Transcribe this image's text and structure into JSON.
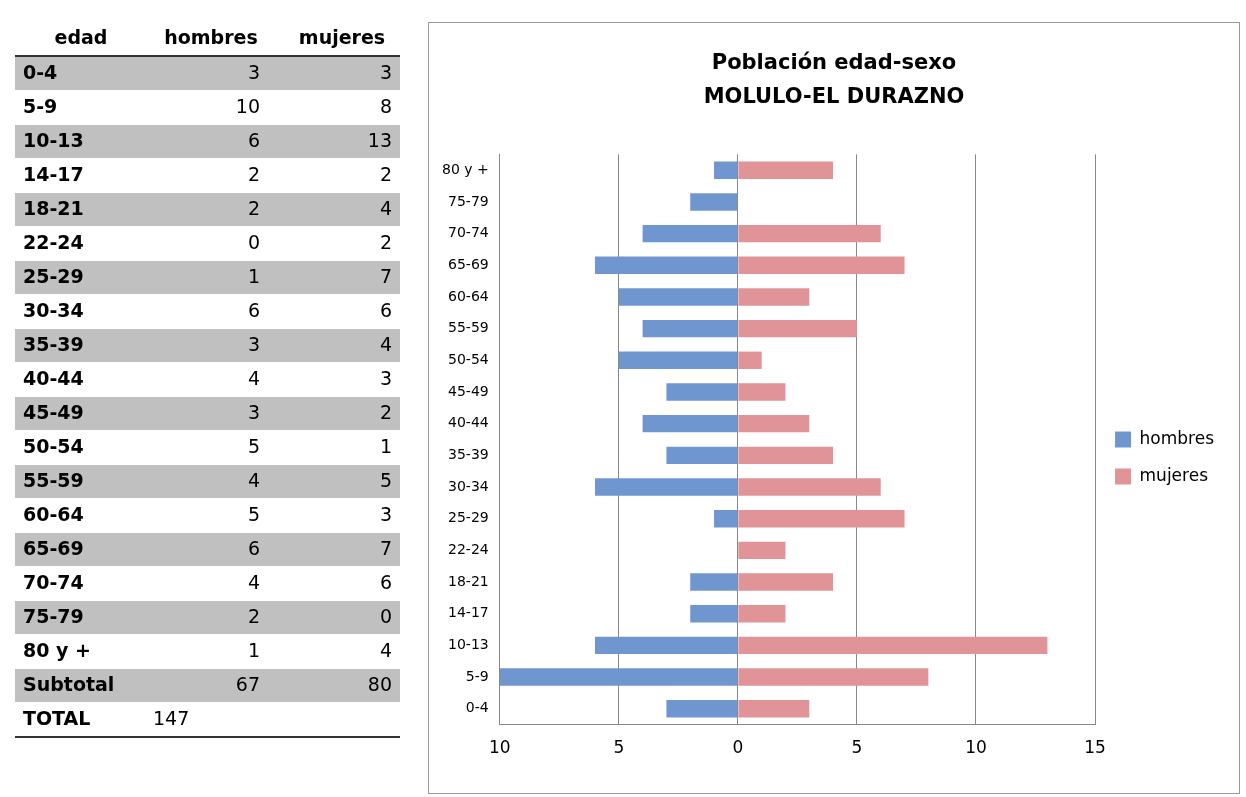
{
  "chart_data": [
    {
      "type": "heatmap",
      "ylabel": "edad",
      "categories": [
        "hombres",
        "mujeres"
      ],
      "y_categories": [
        "0-4",
        "5-9",
        "10-13",
        "14-17",
        "18-21",
        "22-24",
        "25-29",
        "30-34",
        "35-39",
        "40-44",
        "45-49",
        "50-54",
        "55-59",
        "60-64",
        "65-69",
        "70-74",
        "75-79",
        "80 y +",
        "Subtotal",
        "TOTAL"
      ],
      "cells": [
        [
          3,
          3
        ],
        [
          10,
          8
        ],
        [
          6,
          13
        ],
        [
          2,
          2
        ],
        [
          2,
          4
        ],
        [
          0,
          2
        ],
        [
          1,
          7
        ],
        [
          6,
          6
        ],
        [
          3,
          4
        ],
        [
          4,
          3
        ],
        [
          3,
          2
        ],
        [
          5,
          1
        ],
        [
          4,
          5
        ],
        [
          5,
          3
        ],
        [
          6,
          7
        ],
        [
          4,
          6
        ],
        [
          2,
          0
        ],
        [
          1,
          4
        ],
        [
          67,
          80
        ],
        [
          147,
          null
        ]
      ],
      "cell_labels": [
        [
          "3",
          "3"
        ],
        [
          "10",
          "8"
        ],
        [
          "6",
          "13"
        ],
        [
          "2",
          "2"
        ],
        [
          "2",
          "4"
        ],
        [
          "0",
          "2"
        ],
        [
          "1",
          "7"
        ],
        [
          "6",
          "6"
        ],
        [
          "3",
          "4"
        ],
        [
          "4",
          "3"
        ],
        [
          "3",
          "2"
        ],
        [
          "5",
          "1"
        ],
        [
          "4",
          "5"
        ],
        [
          "5",
          "3"
        ],
        [
          "6",
          "7"
        ],
        [
          "4",
          "6"
        ],
        [
          "2",
          "0"
        ],
        [
          "1",
          "4"
        ],
        [
          "67",
          "80"
        ],
        [
          "147",
          null
        ]
      ]
    },
    {
      "type": "bar",
      "orientation": "horizontal",
      "stacked": true,
      "title": "Población edad-sexo\nMOLULO-EL DURAZNO",
      "categories": [
        "80 y +",
        "75-79",
        "70-74",
        "65-69",
        "60-64",
        "55-59",
        "50-54",
        "45-49",
        "40-44",
        "35-39",
        "30-34",
        "25-29",
        "22-24",
        "18-21",
        "14-17",
        "10-13",
        "5-9",
        "0-4"
      ],
      "series": [
        {
          "name": "hombres",
          "color": "#7096d0",
          "values": [
            -1,
            -2,
            -4,
            -6,
            -5,
            -4,
            -5,
            -3,
            -4,
            -3,
            -6,
            -1,
            0,
            -2,
            -2,
            -6,
            -10,
            -3
          ]
        },
        {
          "name": "mujeres",
          "color": "#e09498",
          "values": [
            4,
            0,
            6,
            7,
            3,
            5,
            1,
            2,
            3,
            4,
            6,
            7,
            2,
            4,
            2,
            13,
            8,
            3
          ]
        }
      ],
      "xlim": [
        -10,
        15
      ],
      "xticks": [
        {
          "value": -10,
          "label": "10"
        },
        {
          "value": -5,
          "label": "5"
        },
        0,
        5,
        10,
        15
      ],
      "grid": "x",
      "legend": "right"
    }
  ]
}
